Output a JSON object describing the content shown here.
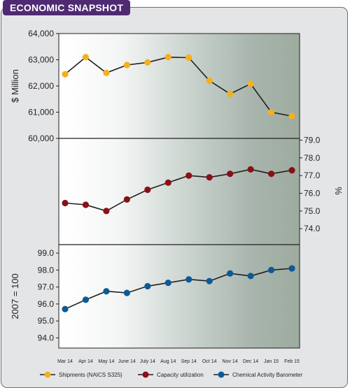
{
  "header": {
    "title": "ECONOMIC SNAPSHOT"
  },
  "colors": {
    "badge": "#4f2a73",
    "shipments": "#f5b01a",
    "capacity": "#8b0f14",
    "barometer": "#0d5a96",
    "line": "#231f20"
  },
  "chart_data": [
    {
      "type": "line",
      "panel": "top",
      "categories": [
        "Mar 14",
        "Apr 14",
        "May 14",
        "June 14",
        "July 14",
        "Aug 14",
        "Sep 14",
        "Oct 14",
        "Nov 14",
        "Dec 14",
        "Jan 15",
        "Feb 15"
      ],
      "series": [
        {
          "name": "Shipments (NAICS S325)",
          "values": [
            62450,
            63100,
            62500,
            62800,
            62900,
            63100,
            63080,
            62200,
            61700,
            62080,
            61000,
            60850
          ]
        }
      ],
      "ylabel": "$ Million",
      "ylim": [
        60000,
        64000
      ],
      "yticks": [
        "60,000",
        "61,000",
        "62,000",
        "63,000",
        "64,000"
      ],
      "axis_side": "left"
    },
    {
      "type": "line",
      "panel": "middle",
      "categories": [
        "Mar 14",
        "Apr 14",
        "May 14",
        "June 14",
        "July 14",
        "Aug 14",
        "Sep 14",
        "Oct 14",
        "Nov 14",
        "Dec 14",
        "Jan 15",
        "Feb 15"
      ],
      "series": [
        {
          "name": "Capacity utilization",
          "values": [
            75.45,
            75.35,
            75.0,
            75.65,
            76.2,
            76.6,
            77.0,
            76.9,
            77.1,
            77.35,
            77.1,
            77.3
          ]
        }
      ],
      "ylabel": "%",
      "ylim": [
        73.1,
        79.1
      ],
      "yticks": [
        "74.0",
        "75.0",
        "76.0",
        "77.0",
        "78.0",
        "79.0"
      ],
      "axis_side": "right"
    },
    {
      "type": "line",
      "panel": "bottom",
      "categories": [
        "Mar 14",
        "Apr 14",
        "May 14",
        "June 14",
        "July 14",
        "Aug 14",
        "Sep 14",
        "Oct 14",
        "Nov 14",
        "Dec 14",
        "Jan 15",
        "Feb 15"
      ],
      "series": [
        {
          "name": "Chemical Activity Barometer",
          "values": [
            95.7,
            96.25,
            96.75,
            96.65,
            97.05,
            97.25,
            97.45,
            97.35,
            97.8,
            97.65,
            98.0,
            98.1
          ]
        }
      ],
      "ylabel": "2007 = 100",
      "ylim": [
        93.4,
        99.5
      ],
      "yticks": [
        "94.0",
        "95.0",
        "96.0",
        "97.0",
        "98.0",
        "99.0"
      ],
      "axis_side": "left"
    }
  ],
  "legend": [
    {
      "label": "Shipments (NAICS S325)"
    },
    {
      "label": "Capacity utilization"
    },
    {
      "label": "Chemical Activity Barometer"
    }
  ]
}
